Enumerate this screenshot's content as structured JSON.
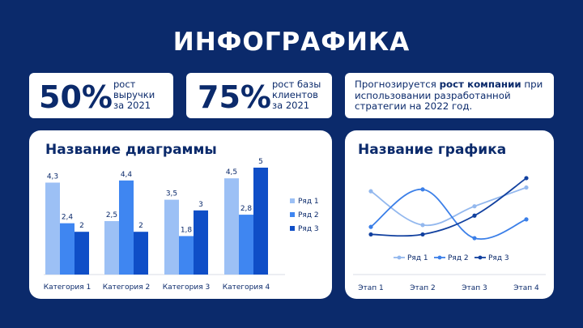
{
  "title": "ИНФОГРАФИКА",
  "stats": [
    {
      "value": "50%",
      "label_lines": [
        "рост",
        "выручки",
        "за 2021"
      ]
    },
    {
      "value": "75%",
      "label_lines": [
        "рост базы",
        "клиентов",
        "за 2021"
      ]
    }
  ],
  "note": {
    "before": "Прогнозируется ",
    "bold": "рост компании",
    "after": " при использовании разработанной стратегии на 2022 год."
  },
  "colors": {
    "background": "#0b2a6b",
    "series1": "#9cc0f5",
    "series2": "#3f86f1",
    "series3": "#0f4ec7",
    "line1": "#93b8ee",
    "line2": "#3b7fe8",
    "line3": "#11409f"
  },
  "chart_data": [
    {
      "type": "bar",
      "title": "Название диаграммы",
      "categories": [
        "Категория 1",
        "Категория 2",
        "Категория 3",
        "Категория 4"
      ],
      "series": [
        {
          "name": "Ряд 1",
          "values": [
            4.3,
            2.5,
            3.5,
            4.5
          ],
          "labels": [
            "4,3",
            "2,5",
            "3,5",
            "4,5"
          ]
        },
        {
          "name": "Ряд 2",
          "values": [
            2.4,
            4.4,
            1.8,
            2.8
          ],
          "labels": [
            "2,4",
            "4,4",
            "1,8",
            "2,8"
          ]
        },
        {
          "name": "Ряд 3",
          "values": [
            2,
            2,
            3,
            5
          ],
          "labels": [
            "2",
            "2",
            "3",
            "5"
          ]
        }
      ],
      "ylim": [
        0,
        5
      ],
      "legend": "right",
      "grid": false
    },
    {
      "type": "line",
      "title": "Название графика",
      "categories": [
        "Этап 1",
        "Этап 2",
        "Этап 3",
        "Этап 4"
      ],
      "series": [
        {
          "name": "Ряд 1",
          "values": [
            4.3,
            2.5,
            3.5,
            4.5
          ]
        },
        {
          "name": "Ряд 2",
          "values": [
            2.4,
            4.4,
            1.8,
            2.8
          ]
        },
        {
          "name": "Ряд 3",
          "values": [
            2,
            2,
            3,
            5
          ]
        }
      ],
      "ylim": [
        1.5,
        5.3
      ],
      "legend": "bottom",
      "grid": false
    }
  ]
}
